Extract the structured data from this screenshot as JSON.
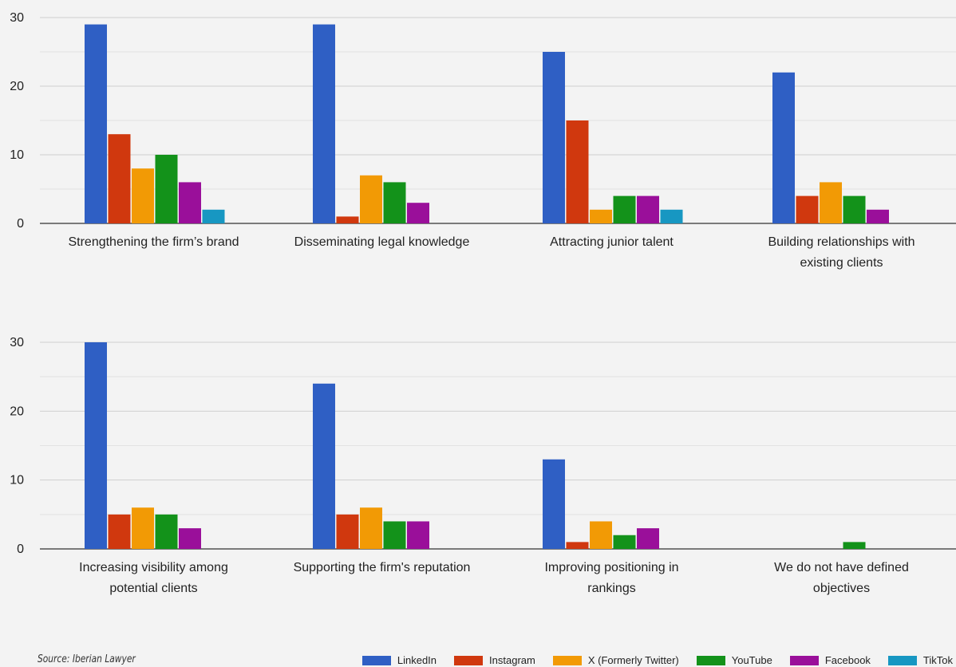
{
  "chart_data": {
    "type": "bar",
    "series": [
      {
        "name": "LinkedIn",
        "color": "#2f5fc4"
      },
      {
        "name": "Instagram",
        "color": "#d0380e"
      },
      {
        "name": "X (Formerly Twitter)",
        "color": "#f29a05"
      },
      {
        "name": "YouTube",
        "color": "#13921a"
      },
      {
        "name": "Facebook",
        "color": "#9a0f9a"
      },
      {
        "name": "TikTok",
        "color": "#1797c2"
      }
    ],
    "yticks": [
      0,
      10,
      20,
      30
    ],
    "ylim": [
      0,
      30
    ],
    "panels": [
      {
        "categories": [
          {
            "label": [
              "Strengthening the firm’s brand"
            ],
            "values": [
              29,
              13,
              8,
              10,
              6,
              2
            ]
          },
          {
            "label": [
              "Disseminating legal knowledge"
            ],
            "values": [
              29,
              1,
              7,
              6,
              3,
              0
            ]
          },
          {
            "label": [
              "Attracting junior talent"
            ],
            "values": [
              25,
              15,
              2,
              4,
              4,
              2
            ]
          },
          {
            "label": [
              "Building relationships with",
              "existing clients"
            ],
            "values": [
              22,
              4,
              6,
              4,
              2,
              0
            ]
          }
        ]
      },
      {
        "categories": [
          {
            "label": [
              "Increasing visibility among",
              "potential clients"
            ],
            "values": [
              30,
              5,
              6,
              5,
              3,
              0
            ]
          },
          {
            "label": [
              "Supporting the firm's reputation"
            ],
            "values": [
              24,
              5,
              6,
              4,
              4,
              0
            ]
          },
          {
            "label": [
              "Improving positioning in",
              "rankings"
            ],
            "values": [
              13,
              1,
              4,
              2,
              3,
              0
            ]
          },
          {
            "label": [
              "We do not have defined",
              "objectives"
            ],
            "values": [
              0,
              0,
              0,
              1,
              0,
              0
            ]
          }
        ]
      }
    ]
  },
  "source": "Source: Iberian Lawyer"
}
